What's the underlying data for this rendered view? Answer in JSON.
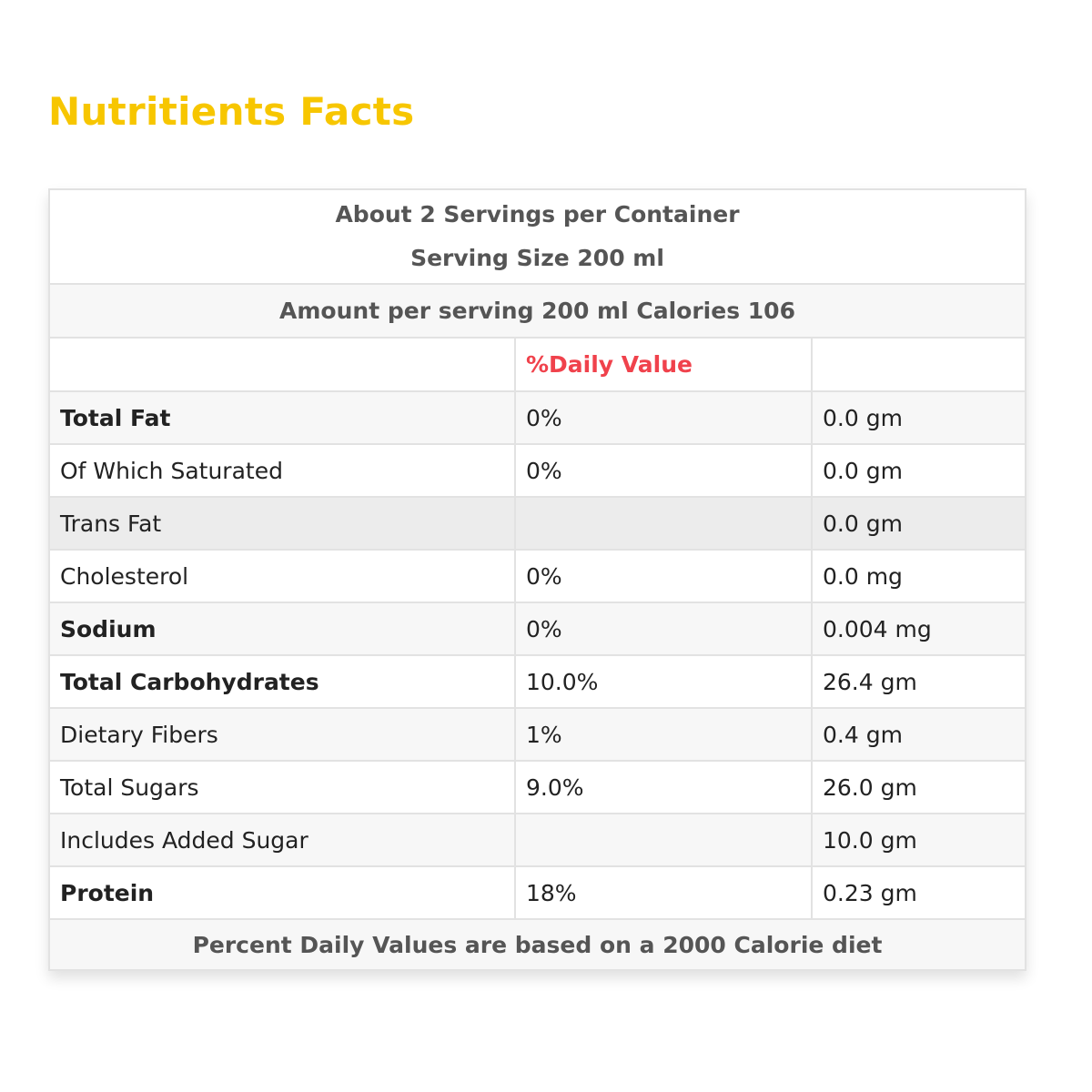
{
  "header": {
    "title": "Nutritients Facts"
  },
  "table": {
    "intro": [
      "About 2 Servings per Container",
      "Serving Size 200 ml"
    ],
    "amount_line": "Amount per serving 200 ml Calories 106",
    "column_header": "%Daily Value",
    "rows": [
      {
        "label": "Total Fat",
        "percent": "0%",
        "amount": "0.0 gm",
        "bold": true
      },
      {
        "label": "Of Which Saturated",
        "percent": "0%",
        "amount": "0.0 gm",
        "bold": false
      },
      {
        "label": "Trans Fat",
        "amount": "0.0 gm",
        "bold": false,
        "highlighted": true
      },
      {
        "label": "Cholesterol",
        "percent": "0%",
        "amount": "0.0 mg",
        "bold": false
      },
      {
        "label": "Sodium",
        "percent": "0%",
        "amount": "0.004 mg",
        "bold": true
      },
      {
        "label": "Total Carbohydrates",
        "percent": "10.0%",
        "amount": "26.4 gm",
        "bold": true
      },
      {
        "label": "Dietary Fibers",
        "percent": "1%",
        "amount": "0.4 gm",
        "bold": false
      },
      {
        "label": "Total Sugars",
        "percent": "9.0%",
        "amount": "26.0 gm",
        "bold": false
      },
      {
        "label": "Includes Added Sugar",
        "amount": "10.0 gm",
        "bold": false
      },
      {
        "label": "Protein",
        "percent": "18%",
        "amount": "0.23 gm",
        "bold": true
      }
    ],
    "footnote": "Percent Daily Values are based on a 2000 Calorie diet"
  }
}
